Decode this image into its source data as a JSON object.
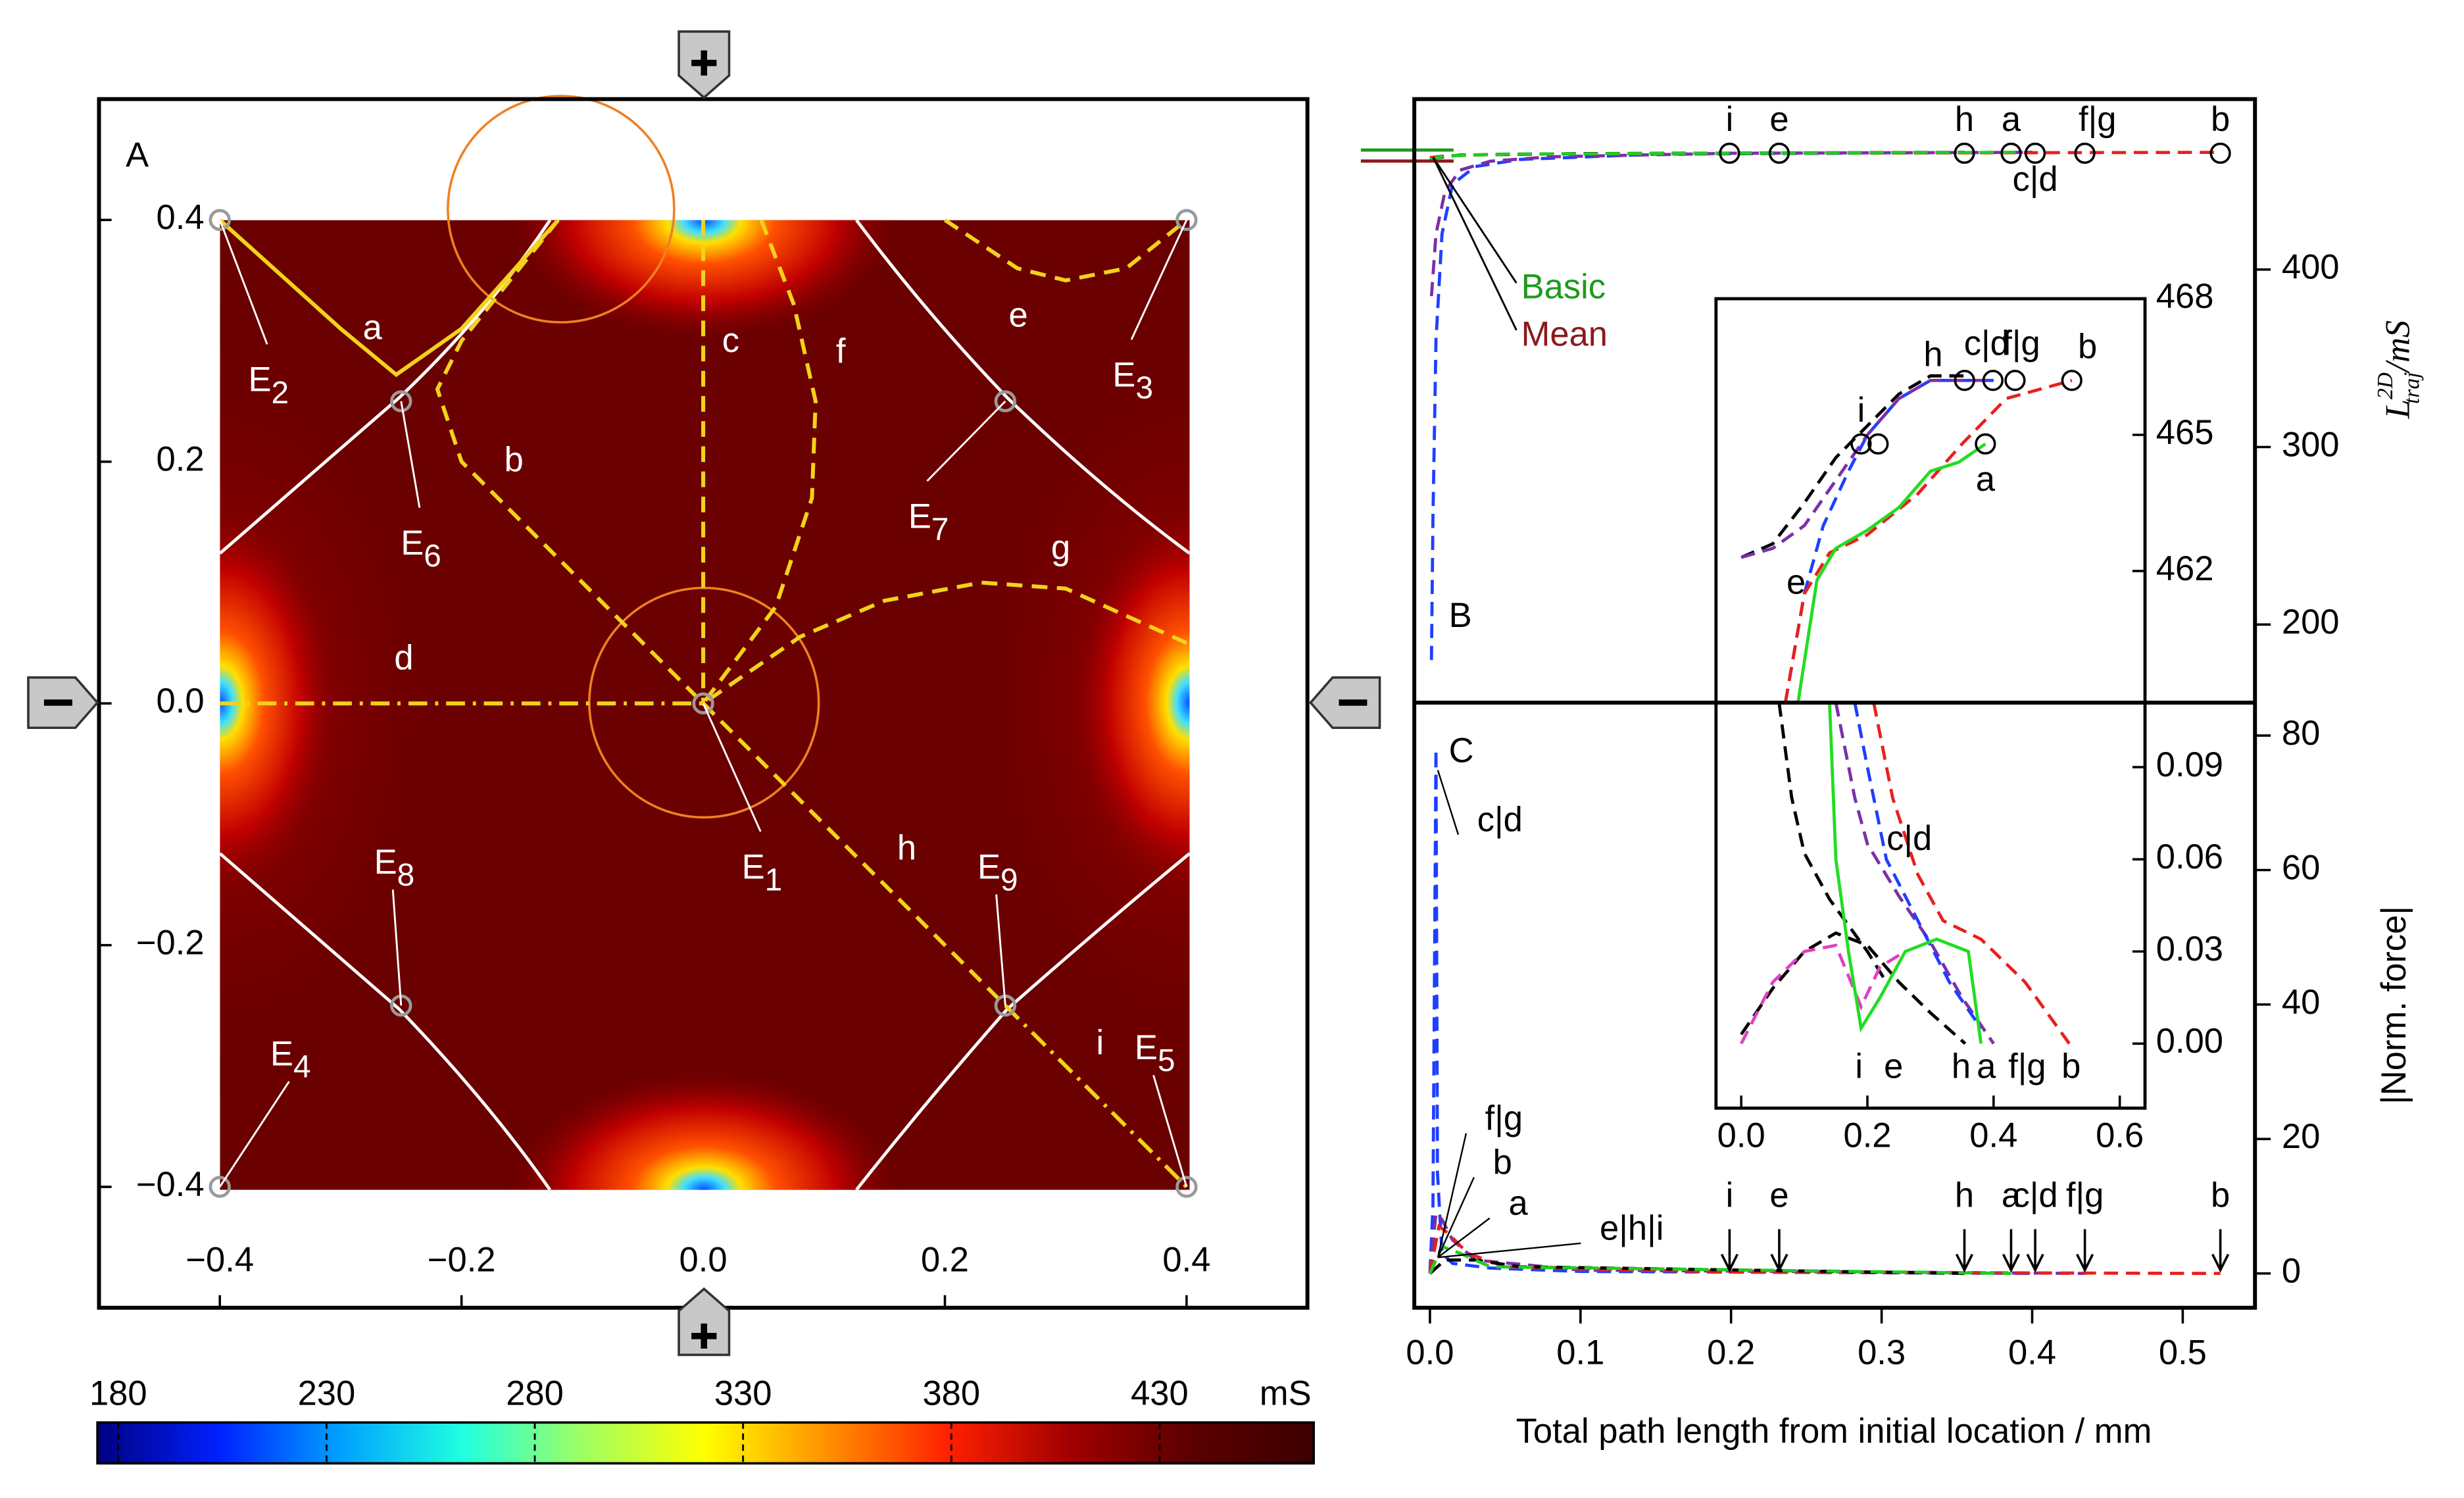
{
  "chart_data": [
    {
      "type": "field_map",
      "panel": "A",
      "xlim": [
        -0.5,
        0.5
      ],
      "ylim": [
        -0.5,
        0.5
      ],
      "xticks": [
        {
          "value": -0.4,
          "label": "−0.4"
        },
        {
          "value": -0.2,
          "label": "−0.2"
        },
        {
          "value": 0,
          "label": "0.0"
        },
        0.2,
        0.4
      ],
      "yticks": [
        {
          "value": -0.4,
          "label": "−0.4"
        },
        {
          "value": -0.2,
          "label": "−0.2"
        },
        {
          "value": 0,
          "label": "0.0"
        },
        0.2,
        0.4
      ],
      "points": [
        {
          "label": "E",
          "sub": "1",
          "x": 0,
          "y": 0
        },
        {
          "label": "E",
          "sub": "2",
          "x": -0.4,
          "y": 0.4
        },
        {
          "label": "E",
          "sub": "3",
          "x": 0.4,
          "y": 0.4
        },
        {
          "label": "E",
          "sub": "4",
          "x": -0.4,
          "y": -0.4
        },
        {
          "label": "E",
          "sub": "5",
          "x": 0.4,
          "y": -0.4
        },
        {
          "label": "E",
          "sub": "6",
          "x": -0.25,
          "y": 0.25
        },
        {
          "label": "E",
          "sub": "7",
          "x": 0.25,
          "y": 0.25
        },
        {
          "label": "E",
          "sub": "8",
          "x": -0.25,
          "y": -0.25
        },
        {
          "label": "E",
          "sub": "9",
          "x": 0.25,
          "y": -0.25
        }
      ],
      "trajectories": [
        {
          "name": "a",
          "style": "solid",
          "color": "#f2d21b",
          "x": [
            -0.4,
            -0.3,
            -0.254,
            -0.2,
            -0.12
          ],
          "y": [
            0.4,
            0.31,
            0.272,
            0.31,
            0.4
          ]
        },
        {
          "name": "b",
          "style": "dash",
          "color": "#f2d21b",
          "x": [
            -0.12,
            -0.2,
            -0.22,
            -0.2,
            -0.12,
            0
          ],
          "y": [
            0.4,
            0.3,
            0.26,
            0.2,
            0.12,
            0
          ]
        },
        {
          "name": "c",
          "style": "dash",
          "color": "#f2d21b",
          "x": [
            0,
            0
          ],
          "y": [
            0.4,
            0
          ]
        },
        {
          "name": "d",
          "style": "dashdot",
          "color": "#f2d21b",
          "x": [
            -0.4,
            0
          ],
          "y": [
            0,
            0
          ]
        },
        {
          "name": "e",
          "style": "dash",
          "color": "#f2d21b",
          "x": [
            0.2,
            0.26,
            0.3,
            0.35,
            0.4
          ],
          "y": [
            0.4,
            0.36,
            0.35,
            0.36,
            0.4
          ]
        },
        {
          "name": "f",
          "style": "dash",
          "color": "#f2d21b",
          "x": [
            0.048,
            0.075,
            0.093,
            0.09,
            0.06,
            0
          ],
          "y": [
            0.4,
            0.33,
            0.25,
            0.17,
            0.08,
            0
          ]
        },
        {
          "name": "g",
          "style": "dash",
          "color": "#f2d21b",
          "x": [
            0.4,
            0.3,
            0.23,
            0.15,
            0.08,
            0
          ],
          "y": [
            0.05,
            0.095,
            0.1,
            0.085,
            0.055,
            0
          ]
        },
        {
          "name": "h",
          "style": "dash",
          "color": "#f2d21b",
          "x": [
            0,
            0.25
          ],
          "y": [
            0,
            -0.25
          ]
        },
        {
          "name": "i",
          "style": "dashdot",
          "color": "#f2d21b",
          "x": [
            0.25,
            0.4
          ],
          "y": [
            -0.25,
            -0.4
          ]
        }
      ]
    },
    {
      "type": "colorbar",
      "unit": "mS",
      "lim": [
        175,
        467
      ],
      "ticks": [
        180,
        230,
        280,
        330,
        380,
        430
      ],
      "colors": [
        "#000080",
        "#0020ff",
        "#00a0ff",
        "#20ffe0",
        "#a0ff60",
        "#ffff00",
        "#ff9000",
        "#ff2000",
        "#a00000",
        "#5a0000",
        "#3c0000"
      ]
    },
    {
      "type": "line",
      "panel": "B",
      "xlim": [
        -0.0104,
        0.548
      ],
      "ylim": [
        156,
        496
      ],
      "yticks": [
        200,
        300,
        400
      ],
      "y_label": {
        "symbol": "L",
        "sup": "2D",
        "sub": "traj",
        "unit": "/mS"
      },
      "levels": [
        {
          "text": "Basic",
          "color": "#1d9a1d",
          "value": 467.3
        },
        {
          "text": "Mean",
          "color": "#8b1a1a",
          "value": 461.1
        }
      ],
      "series": [
        {
          "color": "#000000",
          "dash": true,
          "x": [
            0,
            0.005,
            0.02,
            0.1,
            0.355
          ],
          "y": [
            462,
            463,
            464.5,
            465.3,
            466
          ]
        },
        {
          "color": "#1f3fff",
          "dash": true,
          "x": [
            0.001,
            0.002,
            0.004,
            0.008,
            0.015,
            0.03,
            0.06,
            0.15,
            0.4
          ],
          "y": [
            180,
            260,
            360,
            420,
            448,
            458,
            462,
            465,
            466
          ]
        },
        {
          "color": "#7b2fa8",
          "dash": true,
          "x": [
            0.001,
            0.004,
            0.01,
            0.02,
            0.04,
            0.08,
            0.2,
            0.4
          ],
          "y": [
            385,
            420,
            444,
            456,
            461,
            463.5,
            465.5,
            466
          ]
        },
        {
          "color": "#e8201c",
          "dash": true,
          "x": [
            0,
            0.01,
            0.05,
            0.2,
            0.525
          ],
          "y": [
            463,
            464,
            465,
            465.5,
            466
          ]
        },
        {
          "color": "#22cc22",
          "dash": true,
          "x": [
            0,
            0.01,
            0.05,
            0.2,
            0.39
          ],
          "y": [
            462,
            464,
            465,
            465.5,
            466
          ]
        }
      ],
      "markers": [
        {
          "label": "i",
          "x": [
            0.199
          ],
          "y": [
            465.5
          ]
        },
        {
          "label": "e",
          "x": [
            0.232
          ],
          "y": [
            465.5
          ]
        },
        {
          "label": "h",
          "x": [
            0.355
          ],
          "y": [
            465.5
          ]
        },
        {
          "label": "a",
          "x": [
            0.386
          ],
          "y": [
            465.5
          ]
        },
        {
          "label": "c|d",
          "x": [
            0.402
          ],
          "y": [
            465.5
          ]
        },
        {
          "label": "f|g",
          "x": [
            0.435
          ],
          "y": [
            465.5
          ]
        },
        {
          "label": "b",
          "x": [
            0.525
          ],
          "y": [
            465.5
          ]
        }
      ],
      "inset": {
        "xlim": [
          -0.04,
          0.64
        ],
        "ylim": [
          459.1,
          468
        ],
        "yticks": [
          462,
          465,
          468
        ],
        "series": [
          {
            "color": "#000000",
            "dash": true,
            "x": [
              0,
              0.05,
              0.1,
              0.15,
              0.2,
              0.25,
              0.3,
              0.355
            ],
            "y": [
              462.3,
              462.6,
              463.5,
              464.5,
              465.2,
              465.9,
              466.3,
              466.3
            ]
          },
          {
            "color": "#1f3fff",
            "dash": true,
            "x": [
              0.07,
              0.1,
              0.13,
              0.17,
              0.2,
              0.25,
              0.3,
              0.4
            ],
            "y": [
              459.1,
              461.5,
              463,
              464.2,
              465,
              465.8,
              466.2,
              466.2
            ]
          },
          {
            "color": "#7b2fa8",
            "dash": true,
            "x": [
              0,
              0.05,
              0.1,
              0.15,
              0.2,
              0.25,
              0.3,
              0.4
            ],
            "y": [
              462.3,
              462.5,
              463,
              464,
              465,
              465.8,
              466.2,
              466.2
            ]
          },
          {
            "color": "#e8201c",
            "dash": true,
            "x": [
              0.07,
              0.1,
              0.14,
              0.2,
              0.28,
              0.35,
              0.42,
              0.524
            ],
            "y": [
              459.1,
              461.5,
              462.4,
              462.8,
              463.7,
              464.8,
              465.8,
              466.2
            ]
          },
          {
            "color": "#22dd22",
            "dash": false,
            "x": [
              0.09,
              0.12,
              0.15,
              0.2,
              0.25,
              0.3,
              0.345,
              0.387
            ],
            "y": [
              459.1,
              461.8,
              462.5,
              462.9,
              463.4,
              464.2,
              464.4,
              464.8
            ]
          }
        ],
        "markers": [
          {
            "label": "i",
            "x": [
              0.19,
              0.217
            ],
            "y": [
              464.8,
              464.8
            ]
          },
          {
            "label": "a",
            "x": [
              0.387
            ],
            "y": [
              464.8
            ]
          },
          {
            "label": "h",
            "x": [
              0.354
            ],
            "y": [
              466.2
            ]
          },
          {
            "label": "c|d",
            "x": [
              0.399
            ],
            "y": [
              466.2
            ]
          },
          {
            "label": "f|g",
            "x": [
              0.434
            ],
            "y": [
              466.2
            ]
          },
          {
            "label": "b",
            "x": [
              0.524
            ],
            "y": [
              466.2
            ]
          }
        ],
        "labels": [
          "e"
        ]
      }
    },
    {
      "type": "line",
      "panel": "C",
      "xlim": [
        -0.0104,
        0.548
      ],
      "ylim": [
        -5.1,
        84.9
      ],
      "yticks": [
        0,
        20,
        40,
        60,
        80
      ],
      "y_label": "|Norm. force|",
      "x_label": "Total path length from initial location / mm",
      "xticks": [
        {
          "value": 0,
          "label": "0.0"
        },
        0.1,
        0.2,
        0.3,
        0.4,
        0.5
      ],
      "series": [
        {
          "color": "#1f3fff",
          "dash": true,
          "x": [
            0,
            0.002,
            0.004,
            0.005,
            0.008,
            0.015,
            0.04,
            0.1,
            0.402
          ],
          "y": [
            0,
            10,
            78,
            15,
            3,
            1.5,
            0.8,
            0.3,
            0
          ]
        },
        {
          "color": "#7b2fa8",
          "dash": true,
          "x": [
            0,
            0.004,
            0.008,
            0.015,
            0.03,
            0.1,
            0.435
          ],
          "y": [
            0,
            9,
            8,
            5,
            2,
            0.5,
            0
          ]
        },
        {
          "color": "#e8201c",
          "dash": true,
          "x": [
            0,
            0.006,
            0.012,
            0.025,
            0.05,
            0.2,
            0.525
          ],
          "y": [
            0,
            7,
            6,
            3,
            1,
            0.2,
            0
          ]
        },
        {
          "color": "#000000",
          "dash": true,
          "x": [
            0,
            0.01,
            0.03,
            0.06,
            0.355
          ],
          "y": [
            0,
            2,
            2,
            1,
            0
          ]
        },
        {
          "color": "#22cc22",
          "dash": true,
          "x": [
            0,
            0.008,
            0.02,
            0.04,
            0.386
          ],
          "y": [
            0,
            4,
            3,
            1,
            0
          ]
        }
      ],
      "arrows": [
        {
          "label": "i",
          "x": 0.199
        },
        {
          "label": "e",
          "x": 0.232
        },
        {
          "label": "h",
          "x": 0.355
        },
        {
          "label": "a",
          "x": 0.386
        },
        {
          "label": "c|d",
          "x": 0.402
        },
        {
          "label": "f|g",
          "x": 0.435
        },
        {
          "label": "b",
          "x": 0.525
        }
      ],
      "labels": [
        "f|g",
        "b",
        "a",
        "e|h|i",
        "c|d"
      ],
      "inset": {
        "xlim": [
          -0.04,
          0.64
        ],
        "ylim": [
          -0.021,
          0.111
        ],
        "xticks": [
          {
            "value": 0,
            "label": "0.0"
          },
          0.2,
          0.4,
          0.6
        ],
        "yticks": [
          {
            "value": 0,
            "label": "0.00"
          },
          {
            "value": 0.03,
            "label": "0.03"
          },
          {
            "value": 0.06,
            "label": "0.06"
          },
          {
            "value": 0.09,
            "label": "0.09"
          }
        ],
        "series": [
          {
            "color": "#000000",
            "dash": true,
            "x": [
              0,
              0.05,
              0.1,
              0.15,
              0.2,
              0.25,
              0.3,
              0.355
            ],
            "y": [
              0.003,
              0.018,
              0.03,
              0.036,
              0.032,
              0.02,
              0.01,
              0
            ]
          },
          {
            "color": "#000000",
            "dash": true,
            "x": [
              0.06,
              0.08,
              0.1,
              0.14,
              0.2,
              0.23
            ],
            "y": [
              0.111,
              0.08,
              0.062,
              0.047,
              0.03,
              0.02
            ]
          },
          {
            "color": "#e040c0",
            "dash": true,
            "x": [
              0,
              0.05,
              0.1,
              0.15,
              0.19,
              0.22,
              0.26
            ],
            "y": [
              0,
              0.02,
              0.03,
              0.032,
              0.012,
              0.025,
              0.03
            ]
          },
          {
            "color": "#7b2fa8",
            "dash": true,
            "x": [
              0.15,
              0.18,
              0.2,
              0.25,
              0.3,
              0.35,
              0.4
            ],
            "y": [
              0.111,
              0.08,
              0.065,
              0.048,
              0.033,
              0.015,
              0
            ]
          },
          {
            "color": "#1f3fff",
            "dash": true,
            "x": [
              0.18,
              0.2,
              0.23,
              0.28,
              0.33,
              0.38
            ],
            "y": [
              0.111,
              0.09,
              0.06,
              0.04,
              0.02,
              0.005
            ]
          },
          {
            "color": "#e8201c",
            "dash": true,
            "x": [
              0.21,
              0.24,
              0.28,
              0.32,
              0.38,
              0.45,
              0.52
            ],
            "y": [
              0.111,
              0.08,
              0.055,
              0.04,
              0.034,
              0.02,
              0
            ]
          },
          {
            "color": "#22dd22",
            "dash": false,
            "x": [
              0.14,
              0.15,
              0.17,
              0.19,
              0.22,
              0.26,
              0.31,
              0.36,
              0.38
            ],
            "y": [
              0.111,
              0.06,
              0.03,
              0.005,
              0.015,
              0.03,
              0.034,
              0.03,
              0
            ]
          }
        ],
        "labels": [
          "c|d",
          "i",
          "e",
          "h",
          "a",
          "f|g",
          "b"
        ]
      }
    }
  ]
}
